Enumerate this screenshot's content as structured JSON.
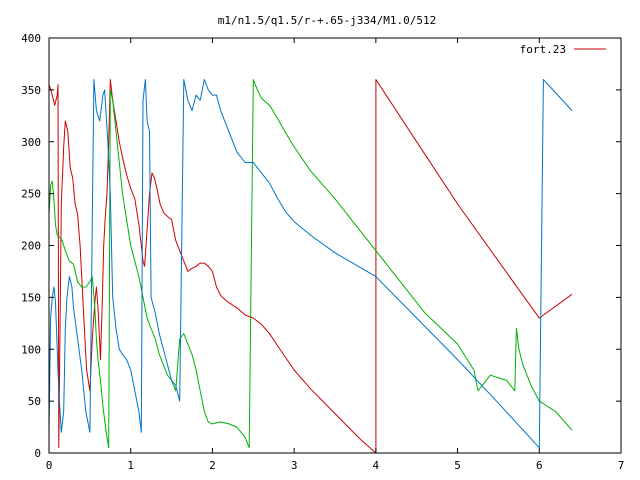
{
  "chart_data": {
    "type": "line",
    "title": "m1/n1.5/q1.5/r-+.65-j334/M1.0/512",
    "xlabel": "",
    "ylabel": "",
    "xlim": [
      0,
      7
    ],
    "ylim": [
      0,
      400
    ],
    "xticks": [
      0,
      1,
      2,
      3,
      4,
      5,
      6,
      7
    ],
    "yticks": [
      0,
      50,
      100,
      150,
      200,
      250,
      300,
      350,
      400
    ],
    "grid": false,
    "legend_position": "top-right",
    "colors": {
      "red": "#cc0000",
      "green": "#00b000",
      "blue": "#0073c8"
    },
    "series": [
      {
        "name": "fort.23",
        "color": "#cc0000",
        "points": [
          [
            0.0,
            355
          ],
          [
            0.03,
            348
          ],
          [
            0.07,
            335
          ],
          [
            0.1,
            345
          ],
          [
            0.11,
            355
          ],
          [
            0.12,
            5
          ],
          [
            0.15,
            240
          ],
          [
            0.18,
            295
          ],
          [
            0.2,
            320
          ],
          [
            0.23,
            310
          ],
          [
            0.26,
            275
          ],
          [
            0.29,
            265
          ],
          [
            0.32,
            240
          ],
          [
            0.35,
            230
          ],
          [
            0.38,
            200
          ],
          [
            0.42,
            140
          ],
          [
            0.46,
            80
          ],
          [
            0.5,
            60
          ],
          [
            0.53,
            110
          ],
          [
            0.56,
            145
          ],
          [
            0.58,
            160
          ],
          [
            0.6,
            140
          ],
          [
            0.63,
            90
          ],
          [
            0.65,
            140
          ],
          [
            0.67,
            200
          ],
          [
            0.69,
            230
          ],
          [
            0.71,
            250
          ],
          [
            0.73,
            300
          ],
          [
            0.75,
            360
          ],
          [
            0.78,
            340
          ],
          [
            0.82,
            320
          ],
          [
            0.86,
            300
          ],
          [
            0.9,
            285
          ],
          [
            0.95,
            268
          ],
          [
            1.0,
            255
          ],
          [
            1.05,
            245
          ],
          [
            1.1,
            220
          ],
          [
            1.13,
            200
          ],
          [
            1.15,
            185
          ],
          [
            1.17,
            180
          ],
          [
            1.2,
            215
          ],
          [
            1.23,
            250
          ],
          [
            1.26,
            270
          ],
          [
            1.29,
            265
          ],
          [
            1.32,
            255
          ],
          [
            1.36,
            240
          ],
          [
            1.4,
            232
          ],
          [
            1.45,
            228
          ],
          [
            1.5,
            225
          ],
          [
            1.55,
            205
          ],
          [
            1.6,
            195
          ],
          [
            1.65,
            185
          ],
          [
            1.7,
            175
          ],
          [
            1.75,
            178
          ],
          [
            1.8,
            180
          ],
          [
            1.85,
            183
          ],
          [
            1.9,
            183
          ],
          [
            1.95,
            180
          ],
          [
            2.0,
            175
          ],
          [
            2.05,
            160
          ],
          [
            2.1,
            152
          ],
          [
            2.15,
            148
          ],
          [
            2.2,
            145
          ],
          [
            2.3,
            140
          ],
          [
            2.4,
            133
          ],
          [
            2.5,
            130
          ],
          [
            2.6,
            124
          ],
          [
            2.7,
            115
          ],
          [
            2.8,
            103
          ],
          [
            3.0,
            80
          ],
          [
            3.2,
            62
          ],
          [
            3.5,
            38
          ],
          [
            3.8,
            14
          ],
          [
            4.0,
            0
          ],
          [
            4.0,
            360
          ],
          [
            4.5,
            300
          ],
          [
            5.0,
            240
          ],
          [
            5.5,
            185
          ],
          [
            6.0,
            130
          ],
          [
            6.4,
            153
          ]
        ]
      },
      {
        "name": "",
        "color": "#00b000",
        "points": [
          [
            0.0,
            230
          ],
          [
            0.02,
            258
          ],
          [
            0.04,
            262
          ],
          [
            0.06,
            245
          ],
          [
            0.08,
            220
          ],
          [
            0.1,
            210
          ],
          [
            0.13,
            208
          ],
          [
            0.16,
            205
          ],
          [
            0.2,
            195
          ],
          [
            0.25,
            185
          ],
          [
            0.3,
            182
          ],
          [
            0.35,
            165
          ],
          [
            0.4,
            160
          ],
          [
            0.45,
            160
          ],
          [
            0.5,
            165
          ],
          [
            0.53,
            170
          ],
          [
            0.56,
            140
          ],
          [
            0.58,
            110
          ],
          [
            0.6,
            90
          ],
          [
            0.63,
            70
          ],
          [
            0.66,
            45
          ],
          [
            0.7,
            20
          ],
          [
            0.73,
            5
          ],
          [
            0.75,
            350
          ],
          [
            0.78,
            340
          ],
          [
            0.82,
            310
          ],
          [
            0.86,
            280
          ],
          [
            0.9,
            250
          ],
          [
            0.95,
            225
          ],
          [
            1.0,
            200
          ],
          [
            1.05,
            185
          ],
          [
            1.1,
            170
          ],
          [
            1.15,
            150
          ],
          [
            1.2,
            130
          ],
          [
            1.25,
            120
          ],
          [
            1.3,
            110
          ],
          [
            1.35,
            95
          ],
          [
            1.4,
            85
          ],
          [
            1.45,
            75
          ],
          [
            1.5,
            70
          ],
          [
            1.55,
            60
          ],
          [
            1.6,
            110
          ],
          [
            1.65,
            115
          ],
          [
            1.7,
            105
          ],
          [
            1.75,
            95
          ],
          [
            1.8,
            80
          ],
          [
            1.85,
            60
          ],
          [
            1.9,
            40
          ],
          [
            1.95,
            30
          ],
          [
            2.0,
            28
          ],
          [
            2.1,
            30
          ],
          [
            2.2,
            28
          ],
          [
            2.3,
            25
          ],
          [
            2.4,
            15
          ],
          [
            2.45,
            5
          ],
          [
            2.5,
            360
          ],
          [
            2.55,
            350
          ],
          [
            2.6,
            342
          ],
          [
            2.7,
            335
          ],
          [
            2.8,
            322
          ],
          [
            2.9,
            308
          ],
          [
            3.0,
            295
          ],
          [
            3.2,
            272
          ],
          [
            3.5,
            245
          ],
          [
            3.8,
            215
          ],
          [
            4.0,
            195
          ],
          [
            4.3,
            165
          ],
          [
            4.6,
            135
          ],
          [
            5.0,
            105
          ],
          [
            5.2,
            80
          ],
          [
            5.25,
            60
          ],
          [
            5.4,
            75
          ],
          [
            5.6,
            70
          ],
          [
            5.7,
            60
          ],
          [
            5.72,
            120
          ],
          [
            5.75,
            100
          ],
          [
            5.8,
            85
          ],
          [
            5.9,
            65
          ],
          [
            6.0,
            50
          ],
          [
            6.2,
            40
          ],
          [
            6.4,
            22
          ]
        ]
      },
      {
        "name": "",
        "color": "#0073c8",
        "points": [
          [
            0.0,
            20
          ],
          [
            0.02,
            130
          ],
          [
            0.04,
            150
          ],
          [
            0.06,
            160
          ],
          [
            0.08,
            145
          ],
          [
            0.1,
            100
          ],
          [
            0.12,
            60
          ],
          [
            0.15,
            20
          ],
          [
            0.18,
            40
          ],
          [
            0.2,
            120
          ],
          [
            0.22,
            150
          ],
          [
            0.25,
            170
          ],
          [
            0.28,
            160
          ],
          [
            0.3,
            140
          ],
          [
            0.35,
            110
          ],
          [
            0.4,
            80
          ],
          [
            0.45,
            40
          ],
          [
            0.5,
            20
          ],
          [
            0.55,
            360
          ],
          [
            0.58,
            330
          ],
          [
            0.62,
            320
          ],
          [
            0.66,
            345
          ],
          [
            0.68,
            350
          ],
          [
            0.72,
            300
          ],
          [
            0.75,
            250
          ],
          [
            0.78,
            150
          ],
          [
            0.82,
            120
          ],
          [
            0.86,
            100
          ],
          [
            0.9,
            95
          ],
          [
            0.95,
            90
          ],
          [
            1.0,
            80
          ],
          [
            1.05,
            60
          ],
          [
            1.1,
            40
          ],
          [
            1.13,
            20
          ],
          [
            1.15,
            340
          ],
          [
            1.18,
            360
          ],
          [
            1.2,
            320
          ],
          [
            1.23,
            310
          ],
          [
            1.25,
            150
          ],
          [
            1.3,
            135
          ],
          [
            1.35,
            115
          ],
          [
            1.4,
            100
          ],
          [
            1.45,
            85
          ],
          [
            1.5,
            70
          ],
          [
            1.55,
            65
          ],
          [
            1.6,
            50
          ],
          [
            1.65,
            360
          ],
          [
            1.7,
            340
          ],
          [
            1.75,
            330
          ],
          [
            1.8,
            345
          ],
          [
            1.85,
            340
          ],
          [
            1.9,
            360
          ],
          [
            1.95,
            350
          ],
          [
            2.0,
            345
          ],
          [
            2.05,
            345
          ],
          [
            2.1,
            330
          ],
          [
            2.2,
            310
          ],
          [
            2.3,
            290
          ],
          [
            2.4,
            280
          ],
          [
            2.5,
            280
          ],
          [
            2.6,
            270
          ],
          [
            2.7,
            260
          ],
          [
            2.8,
            245
          ],
          [
            2.9,
            232
          ],
          [
            3.0,
            223
          ],
          [
            3.2,
            210
          ],
          [
            3.5,
            193
          ],
          [
            4.0,
            170
          ],
          [
            4.5,
            130
          ],
          [
            5.0,
            90
          ],
          [
            5.5,
            48
          ],
          [
            6.0,
            5
          ],
          [
            6.05,
            360
          ],
          [
            6.4,
            330
          ]
        ]
      }
    ]
  }
}
